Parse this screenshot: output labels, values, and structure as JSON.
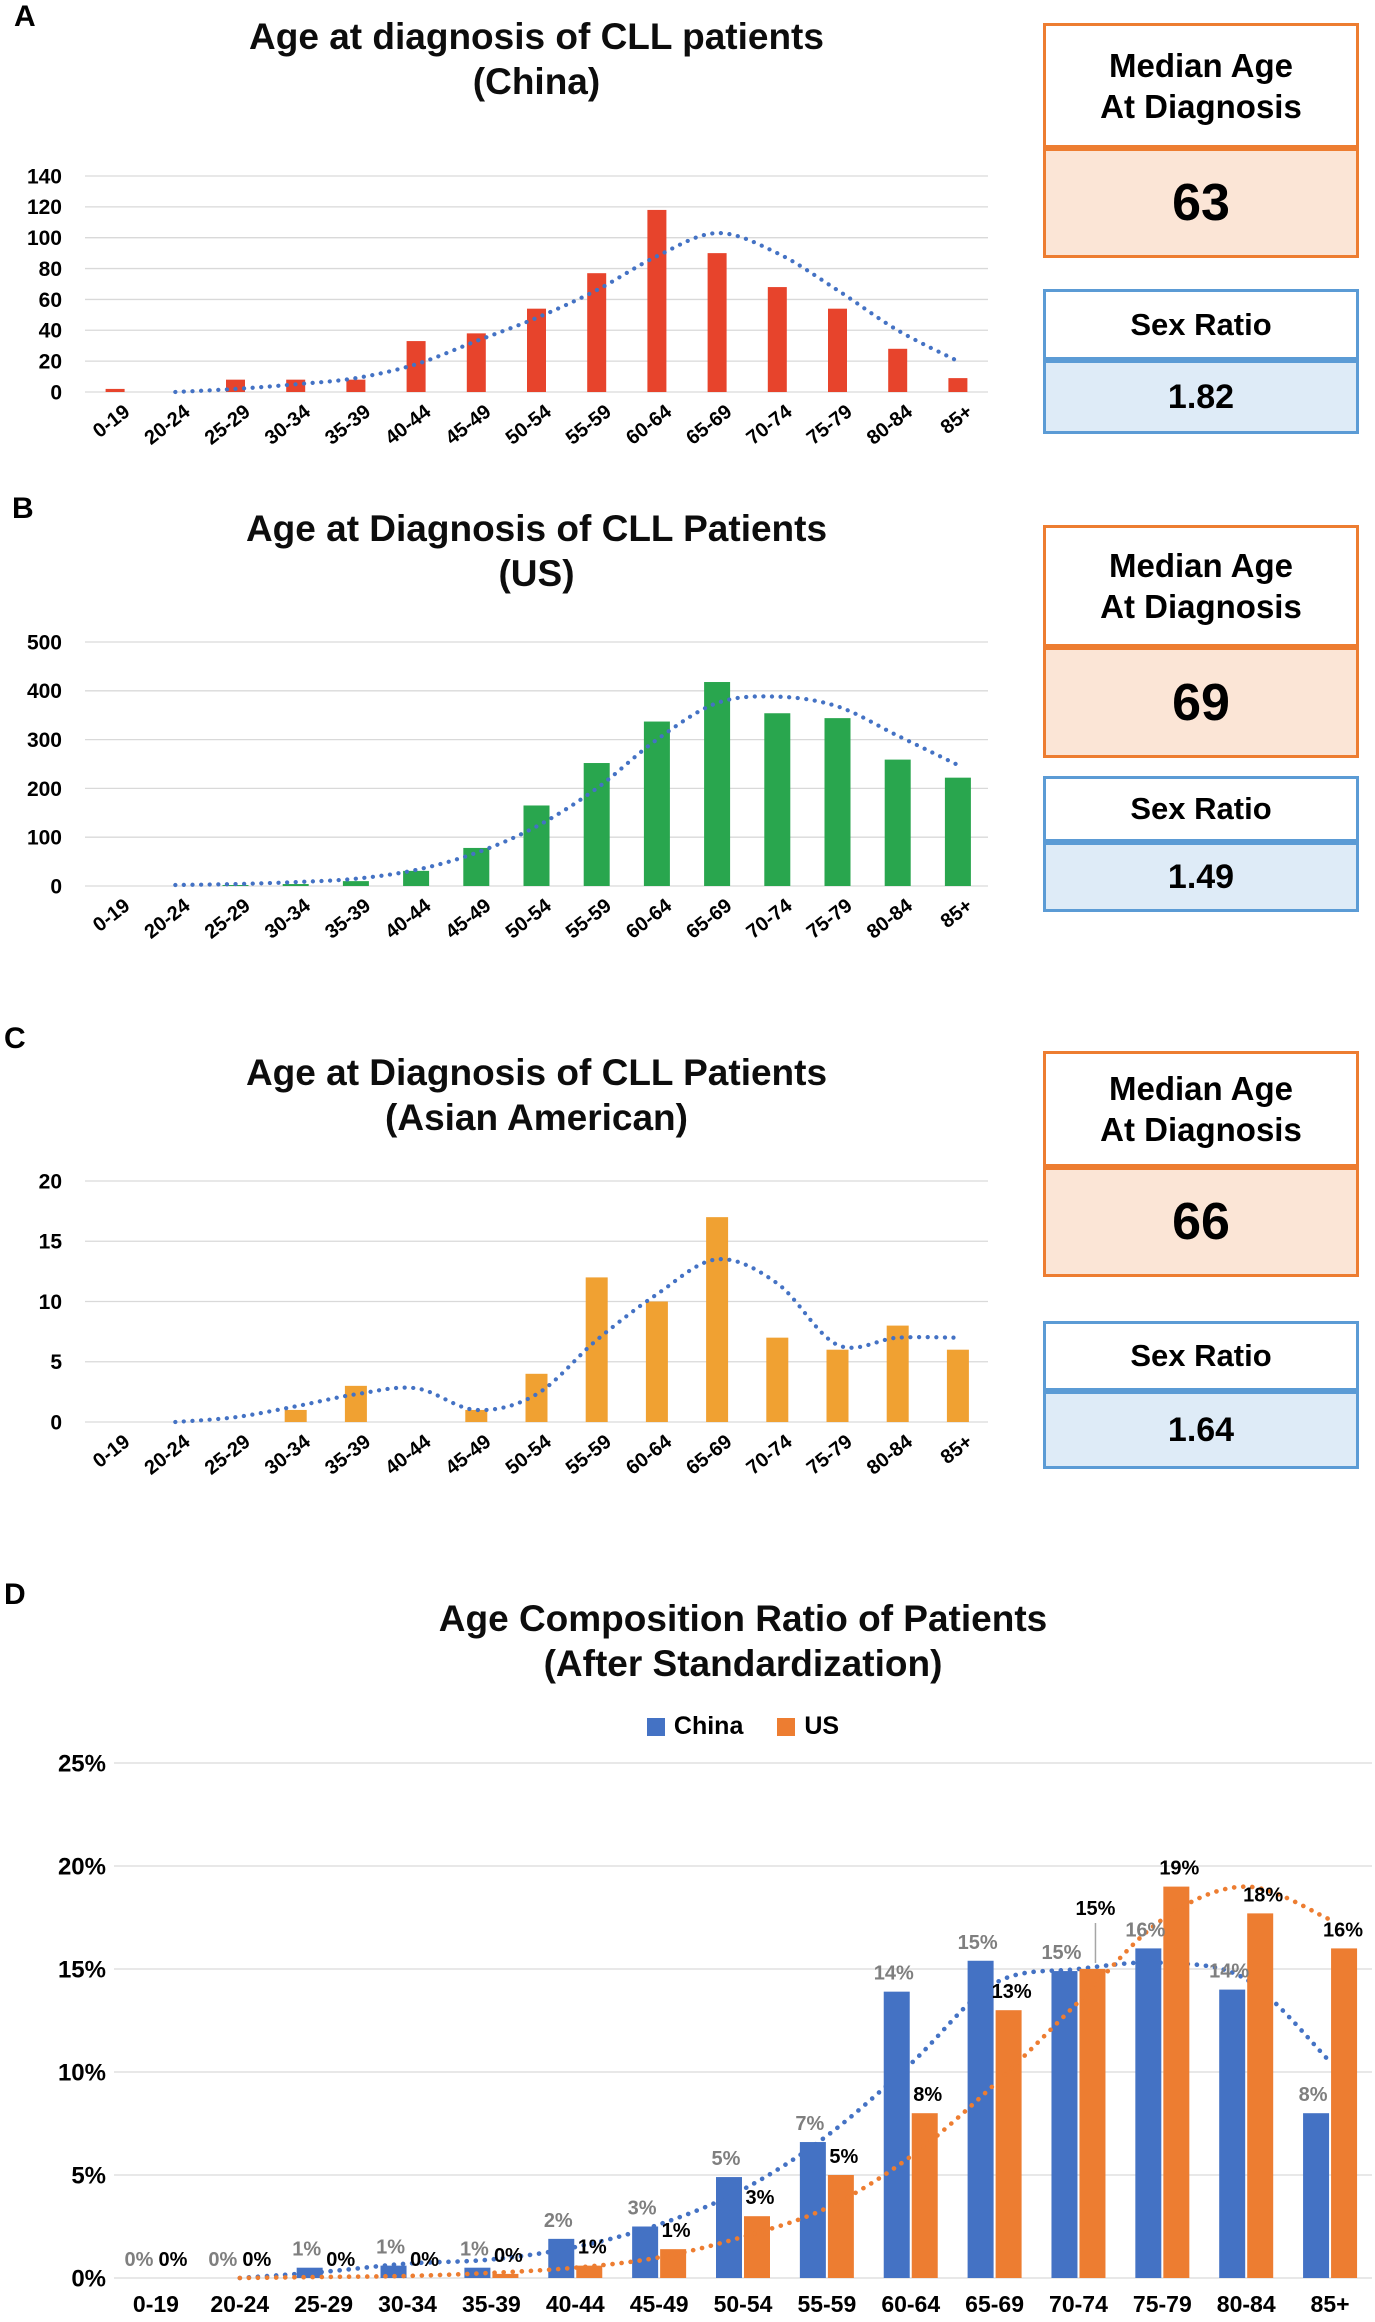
{
  "stat_panels": [
    {
      "panel": "A",
      "median_header_line1": "Median Age",
      "median_header_line2": "At Diagnosis",
      "median_value": "63",
      "ratio_header": "Sex Ratio",
      "ratio_value": "1.82"
    },
    {
      "panel": "B",
      "median_header_line1": "Median Age",
      "median_header_line2": "At Diagnosis",
      "median_value": "69",
      "ratio_header": "Sex Ratio",
      "ratio_value": "1.49"
    },
    {
      "panel": "C",
      "median_header_line1": "Median Age",
      "median_header_line2": "At Diagnosis",
      "median_value": "66",
      "ratio_header": "Sex Ratio",
      "ratio_value": "1.64"
    }
  ],
  "colors": {
    "china_red": "#E7442C",
    "us_green": "#29A64E",
    "asian_orange": "#F0A132",
    "d_blue": "#4472C4",
    "d_orange": "#ED7D31",
    "trend_blue": "#4472C4",
    "box_orange_border": "#ED7D31",
    "box_blue_border": "#5B9BD5",
    "box_orange_fill": "#FBE5D6",
    "box_blue_fill": "#DEEBF7",
    "gridline": "#D9D9D9"
  },
  "chart_data": [
    {
      "panel": "A",
      "type": "bar",
      "title": "Age at diagnosis of CLL patients",
      "subtitle": "(China)",
      "categories": [
        "0-19",
        "20-24",
        "25-29",
        "30-34",
        "35-39",
        "40-44",
        "45-49",
        "50-54",
        "55-59",
        "60-64",
        "65-69",
        "70-74",
        "75-79",
        "80-84",
        "85+"
      ],
      "values": [
        2,
        0,
        8,
        8,
        8,
        33,
        38,
        54,
        77,
        118,
        90,
        68,
        54,
        28,
        9
      ],
      "trend": [
        null,
        0,
        2,
        5,
        9,
        18,
        33,
        48,
        66,
        88,
        103,
        90,
        66,
        40,
        20
      ],
      "y_ticks": [
        0,
        20,
        40,
        60,
        80,
        100,
        120,
        140
      ],
      "y_tick_labels": [
        "0",
        "20",
        "40",
        "60",
        "80",
        "100",
        "120",
        "140"
      ],
      "ylim": [
        0,
        140
      ],
      "grid": true,
      "bar_color": "#E7442C",
      "trend_color": "#4472C4"
    },
    {
      "panel": "B",
      "type": "bar",
      "title": "Age at Diagnosis of CLL Patients",
      "subtitle": "(US)",
      "categories": [
        "0-19",
        "20-24",
        "25-29",
        "30-34",
        "35-39",
        "40-44",
        "45-49",
        "50-54",
        "55-59",
        "60-64",
        "65-69",
        "70-74",
        "75-79",
        "80-84",
        "85+"
      ],
      "values": [
        0,
        0,
        2,
        4,
        10,
        31,
        78,
        165,
        252,
        337,
        418,
        354,
        344,
        259,
        222
      ],
      "trend": [
        null,
        2,
        4,
        8,
        15,
        33,
        68,
        122,
        200,
        300,
        375,
        388,
        368,
        308,
        248
      ],
      "y_ticks": [
        0,
        100,
        200,
        300,
        400,
        500
      ],
      "y_tick_labels": [
        "0",
        "100",
        "200",
        "300",
        "400",
        "500"
      ],
      "ylim": [
        0,
        500
      ],
      "grid": true,
      "bar_color": "#29A64E",
      "trend_color": "#4472C4"
    },
    {
      "panel": "C",
      "type": "bar",
      "title": "Age at Diagnosis of CLL Patients",
      "subtitle": "(Asian American)",
      "categories": [
        "0-19",
        "20-24",
        "25-29",
        "30-34",
        "35-39",
        "40-44",
        "45-49",
        "50-54",
        "55-59",
        "60-64",
        "65-69",
        "70-74",
        "75-79",
        "80-84",
        "85+"
      ],
      "values": [
        0,
        0,
        0,
        1,
        3,
        0,
        1,
        4,
        12,
        10,
        17,
        7,
        6,
        8,
        6
      ],
      "trend": [
        null,
        0,
        0.4,
        1.3,
        2.3,
        2.8,
        1.0,
        2.3,
        6.8,
        10.6,
        13.5,
        11.5,
        6.4,
        7.0,
        7.0
      ],
      "y_ticks": [
        0,
        5,
        10,
        15,
        20
      ],
      "y_tick_labels": [
        "0",
        "5",
        "10",
        "15",
        "20"
      ],
      "ylim": [
        0,
        20
      ],
      "grid": true,
      "bar_color": "#F0A132",
      "trend_color": "#4472C4"
    },
    {
      "panel": "D",
      "type": "bar",
      "title": "Age Composition Ratio of Patients",
      "subtitle": "(After Standardization)",
      "categories": [
        "0-19",
        "20-24",
        "25-29",
        "30-34",
        "35-39",
        "40-44",
        "45-49",
        "50-54",
        "55-59",
        "60-64",
        "65-69",
        "70-74",
        "75-79",
        "80-84",
        "85+"
      ],
      "series": [
        {
          "name": "China",
          "color": "#4472C4",
          "label_color": "#7F7F7F",
          "values": [
            0,
            0,
            0.5,
            0.6,
            0.5,
            1.9,
            2.5,
            4.9,
            6.6,
            13.9,
            15.4,
            14.9,
            16.0,
            14.0,
            8.0
          ],
          "labels": [
            "0%",
            "0%",
            "1%",
            "1%",
            "1%",
            "2%",
            "3%",
            "5%",
            "7%",
            "14%",
            "15%",
            "15%",
            "16%",
            "14%",
            "8%"
          ],
          "trend": [
            null,
            0,
            0.3,
            0.7,
            0.9,
            1.5,
            2.6,
            4.3,
            6.9,
            10.4,
            14.3,
            15.0,
            15.3,
            14.5,
            10.5
          ]
        },
        {
          "name": "US",
          "color": "#ED7D31",
          "label_color": "#000000",
          "values": [
            0,
            0,
            0,
            0,
            0.2,
            0.6,
            1.4,
            3.0,
            5.0,
            8.0,
            13.0,
            15.0,
            19.0,
            17.7,
            16.0
          ],
          "labels": [
            "0%",
            "0%",
            "0%",
            "0%",
            "0%",
            "1%",
            "1%",
            "3%",
            "5%",
            "8%",
            "13%",
            "15%",
            "19%",
            "18%",
            "16%"
          ],
          "trend": [
            null,
            0,
            0.05,
            0.1,
            0.25,
            0.5,
            1.0,
            2.0,
            3.4,
            5.9,
            9.4,
            13.4,
            17.4,
            19.0,
            17.4
          ]
        }
      ],
      "y_ticks": [
        0,
        5,
        10,
        15,
        20,
        25
      ],
      "y_tick_labels": [
        "0%",
        "5%",
        "10%",
        "15%",
        "20%",
        "25%"
      ],
      "ylim": [
        0,
        25
      ],
      "grid": true,
      "legend_position": "top"
    }
  ]
}
